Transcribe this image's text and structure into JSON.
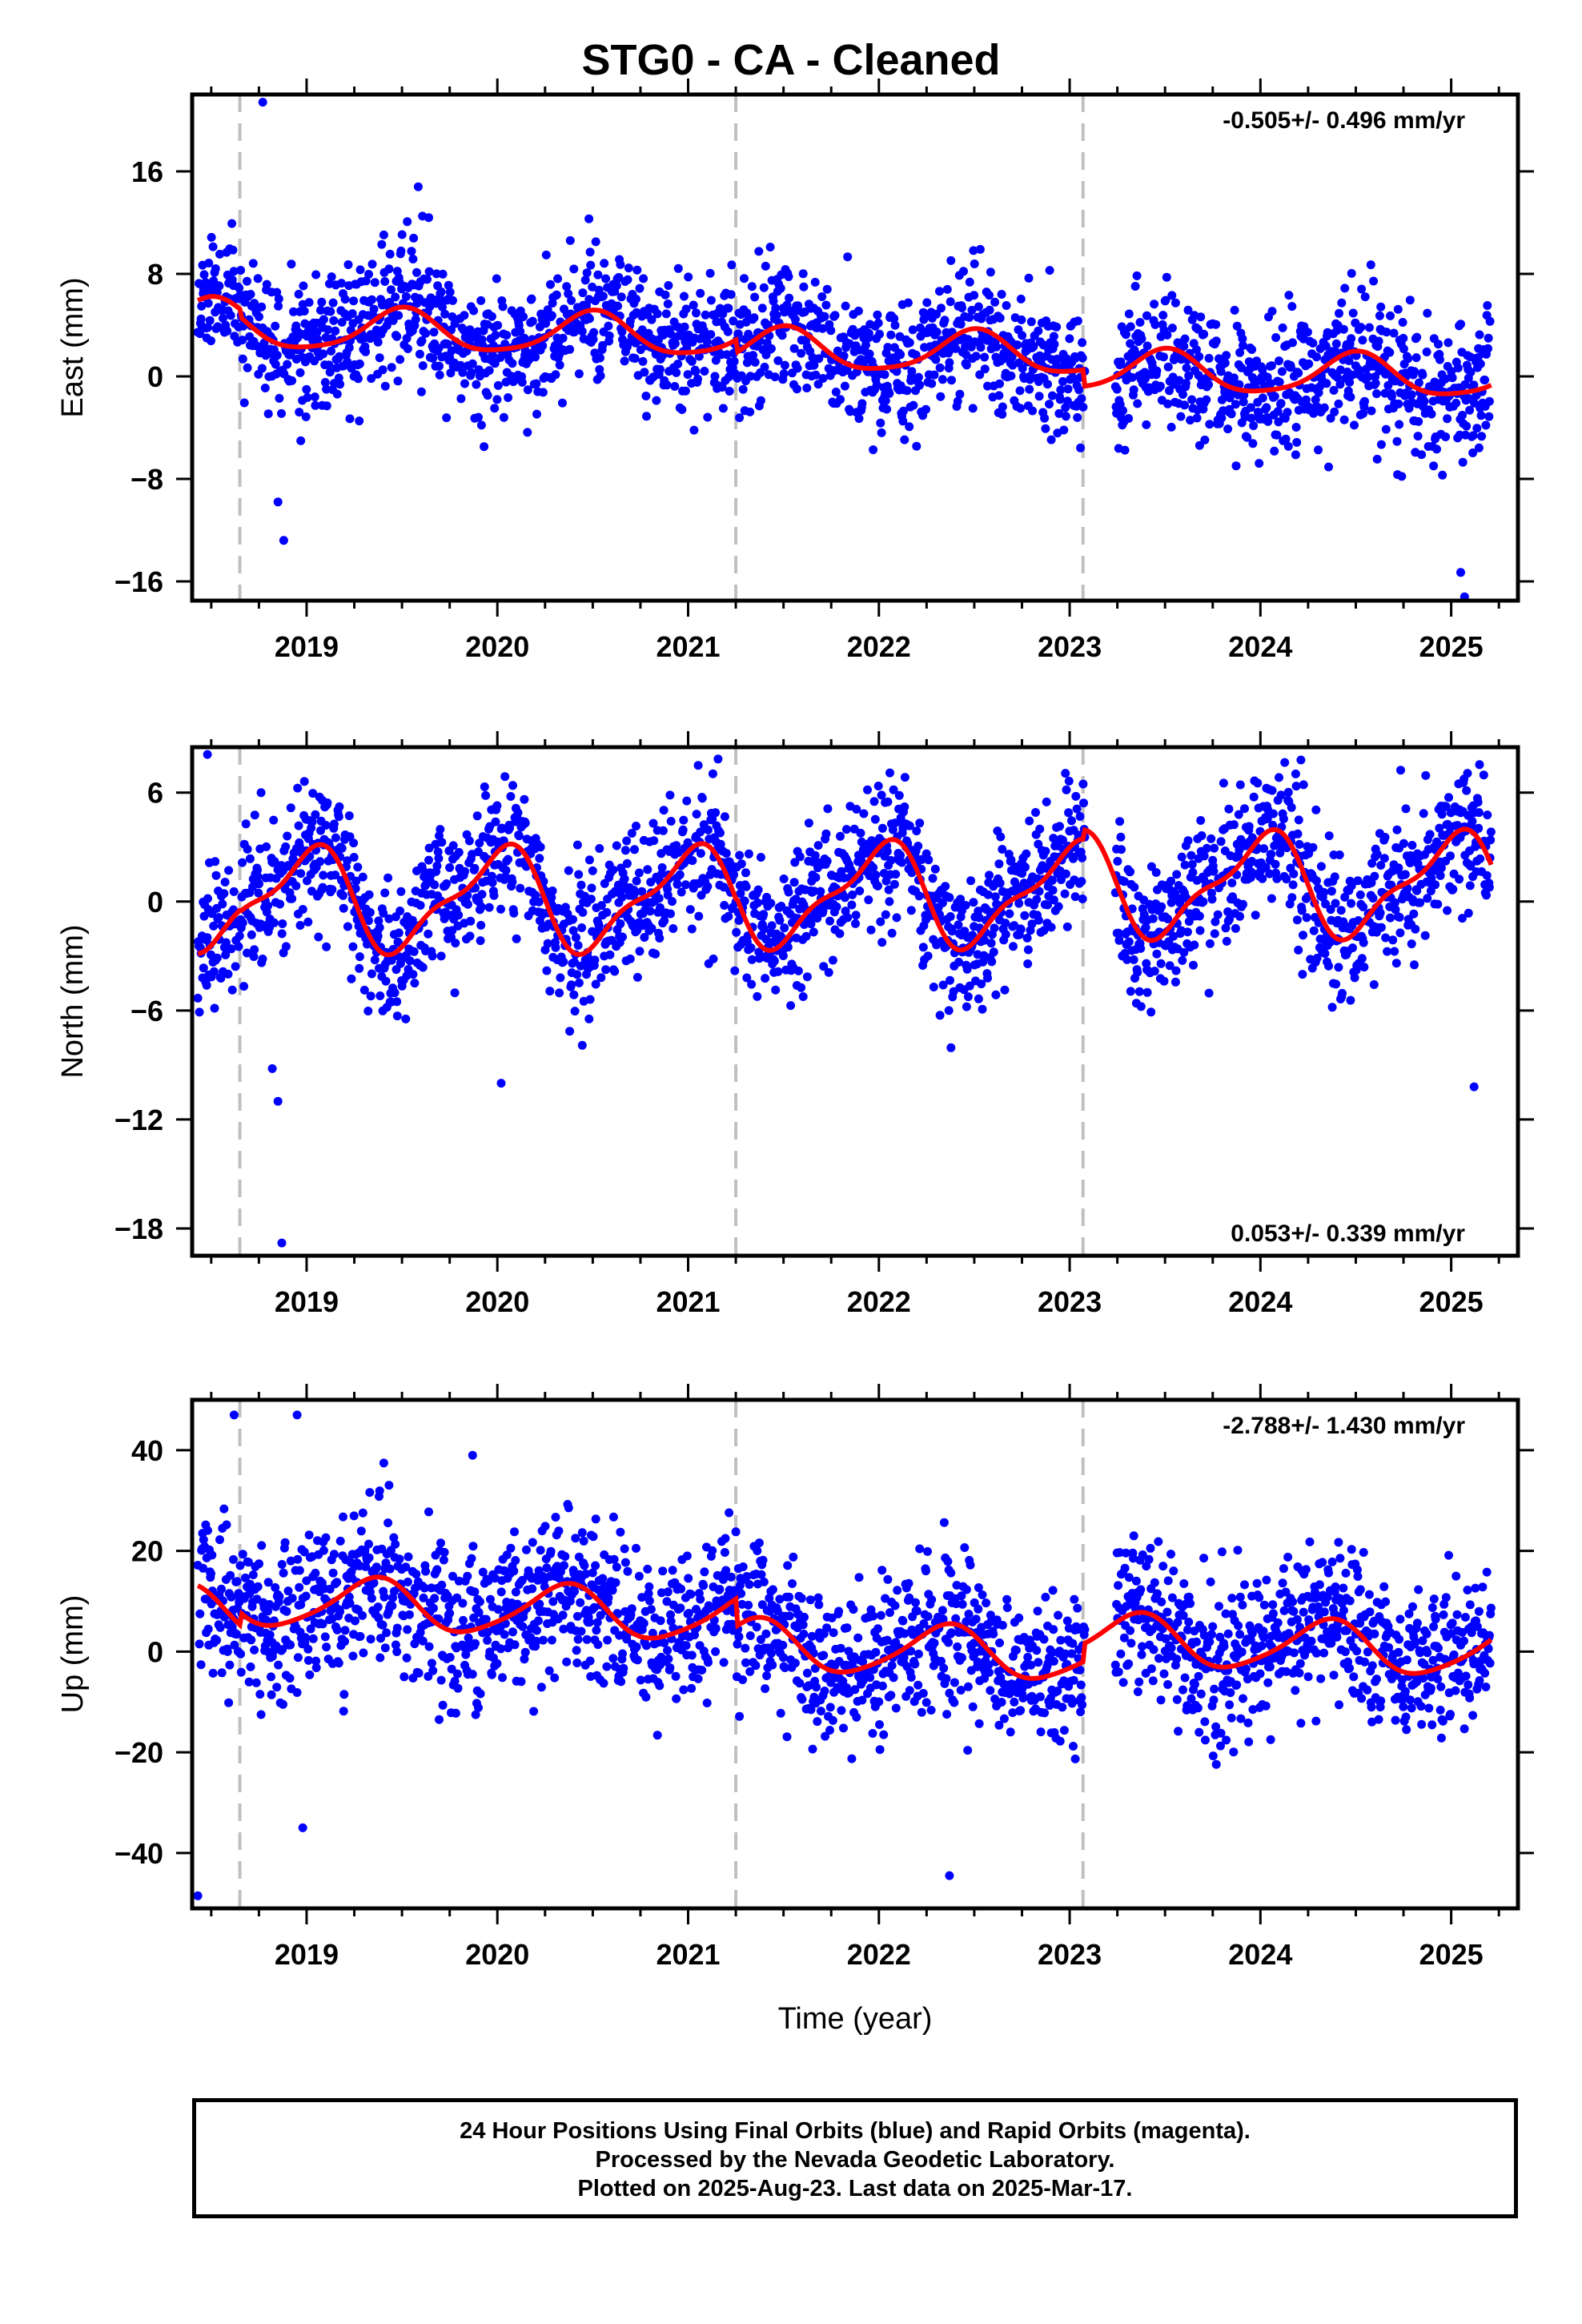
{
  "title": "STG0  - CA - Cleaned",
  "footer": {
    "line1": "24 Hour Positions Using Final Orbits (blue) and Rapid Orbits (magenta).",
    "line2": "Processed by the Nevada Geodetic Laboratory.",
    "line3": "Plotted on 2025-Aug-23. Last data on 2025-Mar-17."
  },
  "colors": {
    "final_orbits": "#0000ff",
    "model": "#ff0000",
    "event_line": "#c0c0c0",
    "frame": "#000000"
  },
  "chart_data": [
    {
      "type": "scatter",
      "name": "east",
      "title": "STG0  - CA - Cleaned",
      "xlabel": "",
      "ylabel": "East (mm)",
      "xlim": [
        2018.4,
        2025.35
      ],
      "ylim": [
        -17.5,
        22
      ],
      "xticks": [
        "2019",
        "2020",
        "2021",
        "2022",
        "2023",
        "2024",
        "2025"
      ],
      "yticks": [
        16,
        8,
        0,
        -8,
        -16
      ],
      "ytick_labels": [
        "16",
        "8",
        "0",
        "−8",
        "−16"
      ],
      "rate_text": "-0.505+/- 0.496 mm/yr",
      "rate_position": "top-right",
      "event_lines": [
        2018.65,
        2021.25,
        2023.07
      ],
      "trend": {
        "rate": -0.505,
        "annual_amp": 1.6,
        "annual_phase": 0.75,
        "semi_amp": 0.3,
        "semi_phase": 0.1,
        "offsets": [
          [
            2018.4,
            4.2
          ],
          [
            2018.65,
            3.6
          ],
          [
            2021.25,
            2.6
          ],
          [
            2023.07,
            1.3
          ]
        ]
      },
      "scatter": {
        "sd": 2.6,
        "seed": 11,
        "outliers": [
          [
            2018.77,
            21.4
          ],
          [
            2018.88,
            -12.8
          ],
          [
            2018.85,
            -9.8
          ],
          [
            2025.07,
            -17.2
          ],
          [
            2025.05,
            -15.3
          ],
          [
            2020.48,
            12.3
          ]
        ]
      },
      "grid": false
    },
    {
      "type": "scatter",
      "name": "north",
      "title": "",
      "xlabel": "",
      "ylabel": "North (mm)",
      "xlim": [
        2018.4,
        2025.35
      ],
      "ylim": [
        -19.5,
        8.5
      ],
      "xticks": [
        "2019",
        "2020",
        "2021",
        "2022",
        "2023",
        "2024",
        "2025"
      ],
      "yticks": [
        6,
        0,
        -6,
        -12,
        -18
      ],
      "ytick_labels": [
        "6",
        "0",
        "−6",
        "−12",
        "−18"
      ],
      "rate_text": "0.053+/- 0.339 mm/yr",
      "rate_position": "bottom-right",
      "event_lines": [
        2018.65,
        2021.25,
        2023.07
      ],
      "trend": {
        "rate": 0.053,
        "annual_amp": 2.6,
        "annual_phase": 0.25,
        "semi_amp": 0.9,
        "semi_phase": 0.5,
        "offsets": [
          [
            2018.4,
            0.2
          ],
          [
            2018.65,
            0.1
          ],
          [
            2021.25,
            0.3
          ],
          [
            2023.07,
            0.8
          ]
        ]
      },
      "scatter": {
        "sd": 1.9,
        "seed": 23,
        "outliers": [
          [
            2018.87,
            -18.8
          ],
          [
            2018.85,
            -11.0
          ],
          [
            2018.82,
            -9.2
          ],
          [
            2020.02,
            -10.0
          ],
          [
            2025.12,
            -10.2
          ],
          [
            2018.48,
            8.1
          ]
        ]
      },
      "grid": false
    },
    {
      "type": "scatter",
      "name": "up",
      "title": "",
      "xlabel": "Time (year)",
      "ylabel": "Up (mm)",
      "xlim": [
        2018.4,
        2025.35
      ],
      "ylim": [
        -51,
        50
      ],
      "xticks": [
        "2019",
        "2020",
        "2021",
        "2022",
        "2023",
        "2024",
        "2025"
      ],
      "yticks": [
        40,
        20,
        0,
        -20,
        -40
      ],
      "ytick_labels": [
        "40",
        "20",
        "0",
        "−20",
        "−40"
      ],
      "rate_text": "-2.788+/- 1.430 mm/yr",
      "rate_position": "top-right",
      "event_lines": [
        2018.65,
        2021.25,
        2023.07
      ],
      "trend": {
        "rate": -2.788,
        "annual_amp": 5.0,
        "annual_phase": 0.9,
        "semi_amp": 0.8,
        "semi_phase": 0.2,
        "offsets": [
          [
            2018.4,
            7.0
          ],
          [
            2018.65,
            9.5
          ],
          [
            2021.25,
            4.0
          ],
          [
            2023.07,
            7.5
          ]
        ]
      },
      "scatter": {
        "sd": 7.5,
        "seed": 37,
        "outliers": [
          [
            2018.43,
            -48.5
          ],
          [
            2018.62,
            47.0
          ],
          [
            2018.95,
            47.0
          ],
          [
            2022.37,
            -44.5
          ],
          [
            2018.98,
            -35.0
          ],
          [
            2019.87,
            39.0
          ]
        ]
      },
      "grid": false
    }
  ]
}
